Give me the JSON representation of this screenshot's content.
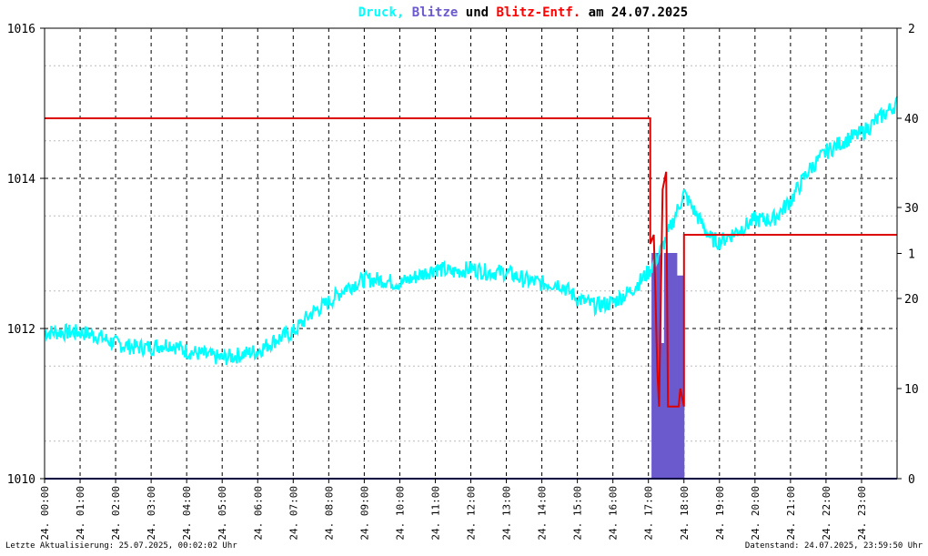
{
  "title": {
    "parts": [
      {
        "text": "Druck",
        "color": "#00ffff"
      },
      {
        "text": ", ",
        "color": "#00ffff"
      },
      {
        "text": "Blitze",
        "color": "#6a5acd"
      },
      {
        "text": " und ",
        "color": "#000000"
      },
      {
        "text": "Blitz-Entf.",
        "color": "#ff0000"
      },
      {
        "text": " am 24.07.2025",
        "color": "#000000"
      }
    ]
  },
  "footer": {
    "left": "Letzte Aktualisierung: 25.07.2025, 00:02:02 Uhr",
    "right": "Datenstand: 24.07.2025, 23:59:50 Uhr"
  },
  "colors": {
    "pressure": "#00ffff",
    "strikes": "#6a5acd",
    "distance": "#dd0000",
    "baseline": "#000080",
    "grid": "#000000"
  },
  "chart_data": {
    "type": "line",
    "x_ticks": [
      "24. 00:00",
      "24. 01:00",
      "24. 02:00",
      "24. 03:00",
      "24. 04:00",
      "24. 05:00",
      "24. 06:00",
      "24. 07:00",
      "24. 08:00",
      "24. 09:00",
      "24. 10:00",
      "24. 11:00",
      "24. 12:00",
      "24. 13:00",
      "24. 14:00",
      "24. 15:00",
      "24. 16:00",
      "24. 17:00",
      "24. 18:00",
      "24. 19:00",
      "24. 20:00",
      "24. 21:00",
      "24. 22:00",
      "24. 23:00"
    ],
    "y_left": {
      "ticks": [
        "1016",
        "1014",
        "1012",
        "1010"
      ],
      "range": [
        1010,
        1016
      ]
    },
    "y_right_strikes": {
      "ticks": [
        "2",
        "1",
        "0"
      ],
      "range": [
        0,
        2
      ]
    },
    "y_right_distance": {
      "ticks": [
        "40",
        "30",
        "20",
        "10"
      ]
    },
    "grid": true,
    "series": [
      {
        "name": "Druck",
        "x": [
          0,
          0.5,
          1,
          1.5,
          2,
          2.5,
          3,
          3.5,
          4,
          4.5,
          5,
          5.5,
          6,
          6.5,
          7,
          7.5,
          8,
          8.5,
          9,
          9.5,
          10,
          10.5,
          11,
          11.5,
          12,
          12.5,
          13,
          13.5,
          14,
          14.5,
          15,
          15.5,
          16,
          16.5,
          17,
          17.25,
          17.5,
          17.75,
          18,
          18.25,
          18.5,
          18.75,
          19,
          19.5,
          20,
          20.5,
          21,
          21.5,
          22,
          22.5,
          23,
          23.5,
          24
        ],
        "values": [
          1011.95,
          1011.95,
          1011.95,
          1011.9,
          1011.8,
          1011.75,
          1011.75,
          1011.8,
          1011.7,
          1011.65,
          1011.6,
          1011.65,
          1011.7,
          1011.85,
          1011.95,
          1012.2,
          1012.35,
          1012.55,
          1012.65,
          1012.65,
          1012.6,
          1012.7,
          1012.8,
          1012.75,
          1012.8,
          1012.75,
          1012.75,
          1012.65,
          1012.6,
          1012.6,
          1012.4,
          1012.3,
          1012.35,
          1012.5,
          1012.75,
          1012.95,
          1013.2,
          1013.5,
          1013.8,
          1013.6,
          1013.4,
          1013.2,
          1013.15,
          1013.3,
          1013.45,
          1013.45,
          1013.7,
          1014.1,
          1014.35,
          1014.5,
          1014.6,
          1014.8,
          1015.0
        ]
      },
      {
        "name": "Blitze",
        "x": [
          0,
          17.1,
          17.1,
          17.35,
          17.35,
          17.45,
          17.45,
          17.8,
          17.8,
          18.0,
          18.0,
          24
        ],
        "values": [
          0,
          0,
          1,
          1,
          0.6,
          0.6,
          1,
          1,
          0.9,
          0.9,
          0,
          0
        ]
      },
      {
        "name": "Blitz-Entf.",
        "x": [
          0,
          17.05,
          17.05,
          17.15,
          17.2,
          17.25,
          17.3,
          17.4,
          17.5,
          17.55,
          17.7,
          17.85,
          17.9,
          18.0,
          18.0,
          24
        ],
        "values": [
          40,
          40,
          26,
          27,
          20,
          12,
          8,
          32,
          34,
          8,
          8,
          8,
          10,
          8,
          27,
          27
        ]
      }
    ]
  }
}
